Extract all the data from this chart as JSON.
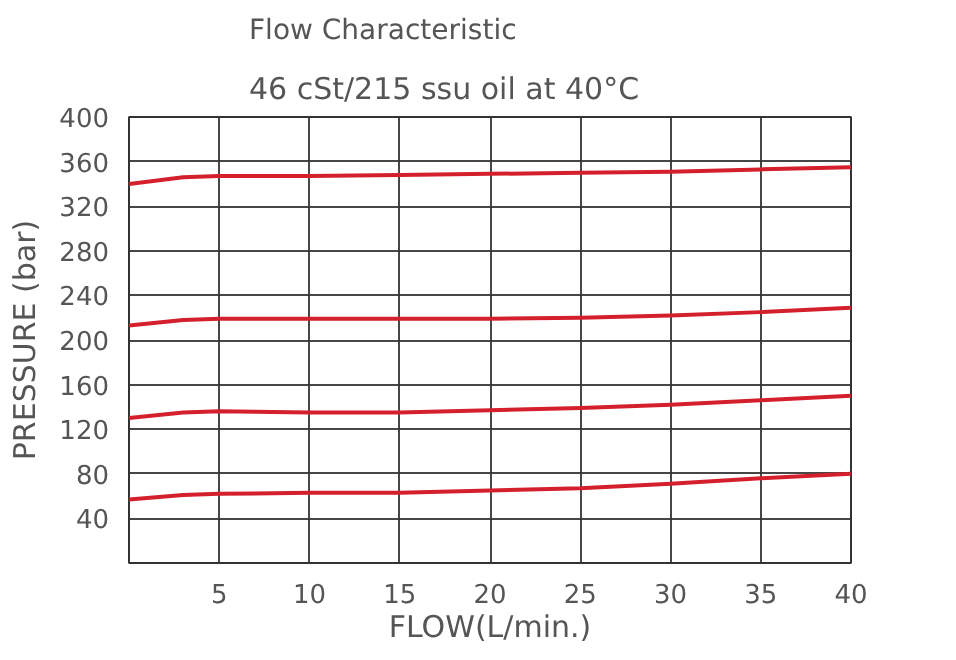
{
  "chart_data": {
    "type": "line",
    "title": "Flow Characteristic",
    "subtitle": "46 cSt/215 ssu oil at 40°C",
    "xlabel": "FLOW(L/min.)",
    "ylabel": "PRESSURE (bar)",
    "x": [
      0,
      3,
      5,
      10,
      15,
      20,
      25,
      30,
      35,
      40
    ],
    "series": [
      {
        "color": "#d4202c",
        "values": [
          340,
          346,
          347,
          347,
          348,
          349,
          350,
          351,
          353,
          355
        ]
      },
      {
        "color": "#d4202c",
        "values": [
          213,
          218,
          219,
          219,
          219,
          219,
          220,
          222,
          225,
          229
        ]
      },
      {
        "color": "#d4202c",
        "values": [
          130,
          135,
          136,
          135,
          135,
          137,
          139,
          142,
          146,
          150
        ]
      },
      {
        "color": "#d4202c",
        "values": [
          57,
          61,
          62,
          63,
          63,
          65,
          67,
          71,
          76,
          80
        ]
      }
    ],
    "xlim": [
      0,
      40
    ],
    "xticks": [
      5,
      10,
      15,
      20,
      25,
      30,
      35,
      40
    ],
    "ylim": [
      0,
      400
    ],
    "yticks": [
      {
        "value": 0,
        "label": null
      },
      40,
      80,
      120,
      160,
      200,
      240,
      280,
      320,
      360,
      400
    ],
    "grid": true,
    "line_style": "solid"
  }
}
